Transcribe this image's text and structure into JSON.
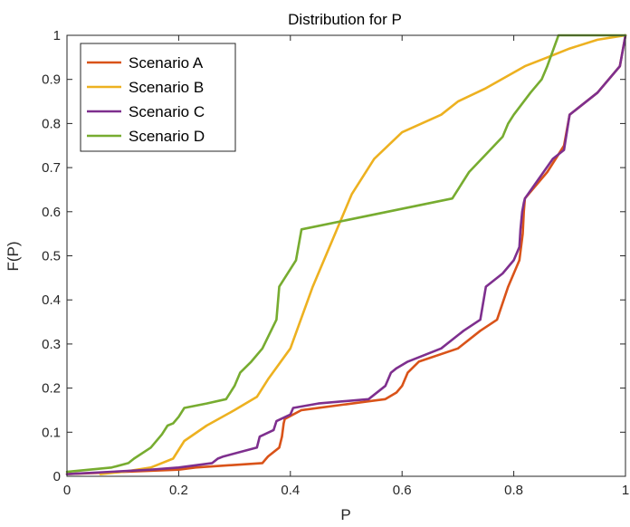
{
  "chart_data": {
    "type": "line",
    "title": "Distribution for P",
    "xlabel": "P",
    "ylabel": "F(P)",
    "xlim": [
      0,
      1
    ],
    "ylim": [
      0,
      1
    ],
    "xticks": [
      "0",
      "0.2",
      "0.4",
      "0.6",
      "0.8",
      "1"
    ],
    "yticks": [
      "0",
      "0.1",
      "0.2",
      "0.3",
      "0.4",
      "0.5",
      "0.6",
      "0.7",
      "0.8",
      "0.9",
      "1"
    ],
    "grid": false,
    "legend_position": "top-left",
    "series": [
      {
        "name": "Scenario A",
        "color": "#D95319",
        "x": [
          0,
          0.2,
          0.23,
          0.35,
          0.36,
          0.38,
          0.385,
          0.388,
          0.39,
          0.42,
          0.54,
          0.57,
          0.59,
          0.6,
          0.61,
          0.63,
          0.7,
          0.74,
          0.77,
          0.79,
          0.81,
          0.816,
          0.818,
          0.82,
          0.86,
          0.88,
          0.89,
          0.9,
          0.95,
          0.99,
          1.0
        ],
        "y": [
          0.005,
          0.015,
          0.02,
          0.03,
          0.045,
          0.065,
          0.09,
          0.12,
          0.13,
          0.15,
          0.17,
          0.175,
          0.19,
          0.205,
          0.235,
          0.26,
          0.29,
          0.33,
          0.355,
          0.43,
          0.49,
          0.55,
          0.6,
          0.63,
          0.69,
          0.73,
          0.75,
          0.82,
          0.87,
          0.93,
          1.0
        ]
      },
      {
        "name": "Scenario B",
        "color": "#EDB120",
        "x": [
          0.06,
          0.1,
          0.15,
          0.19,
          0.21,
          0.25,
          0.3,
          0.34,
          0.36,
          0.4,
          0.44,
          0.48,
          0.51,
          0.55,
          0.6,
          0.67,
          0.7,
          0.75,
          0.82,
          0.86,
          0.9,
          0.95,
          1.0
        ],
        "y": [
          0.005,
          0.01,
          0.02,
          0.04,
          0.08,
          0.115,
          0.15,
          0.18,
          0.22,
          0.29,
          0.43,
          0.55,
          0.64,
          0.72,
          0.78,
          0.82,
          0.85,
          0.88,
          0.93,
          0.95,
          0.97,
          0.99,
          1.0
        ]
      },
      {
        "name": "Scenario C",
        "color": "#7E2F8E",
        "x": [
          0,
          0.15,
          0.2,
          0.26,
          0.27,
          0.28,
          0.34,
          0.345,
          0.37,
          0.375,
          0.4,
          0.405,
          0.45,
          0.54,
          0.57,
          0.58,
          0.59,
          0.61,
          0.67,
          0.71,
          0.74,
          0.75,
          0.78,
          0.8,
          0.81,
          0.812,
          0.815,
          0.818,
          0.82,
          0.87,
          0.89,
          0.9,
          0.95,
          0.99,
          1.0
        ],
        "y": [
          0.005,
          0.015,
          0.02,
          0.03,
          0.04,
          0.045,
          0.065,
          0.09,
          0.105,
          0.125,
          0.14,
          0.155,
          0.165,
          0.175,
          0.205,
          0.235,
          0.245,
          0.26,
          0.29,
          0.33,
          0.355,
          0.43,
          0.46,
          0.49,
          0.52,
          0.56,
          0.6,
          0.62,
          0.63,
          0.72,
          0.74,
          0.82,
          0.87,
          0.93,
          1.0
        ]
      },
      {
        "name": "Scenario D",
        "color": "#77AC30",
        "x": [
          0,
          0.04,
          0.08,
          0.11,
          0.12,
          0.15,
          0.17,
          0.18,
          0.19,
          0.2,
          0.21,
          0.25,
          0.285,
          0.3,
          0.31,
          0.33,
          0.35,
          0.375,
          0.38,
          0.41,
          0.42,
          0.69,
          0.72,
          0.75,
          0.78,
          0.79,
          0.8,
          0.83,
          0.85,
          0.86,
          0.88,
          1.0
        ],
        "y": [
          0.01,
          0.015,
          0.02,
          0.03,
          0.04,
          0.065,
          0.095,
          0.115,
          0.12,
          0.135,
          0.155,
          0.165,
          0.175,
          0.205,
          0.235,
          0.26,
          0.29,
          0.355,
          0.43,
          0.49,
          0.56,
          0.63,
          0.69,
          0.73,
          0.77,
          0.8,
          0.82,
          0.87,
          0.9,
          0.93,
          1.0,
          1.0
        ]
      }
    ]
  }
}
